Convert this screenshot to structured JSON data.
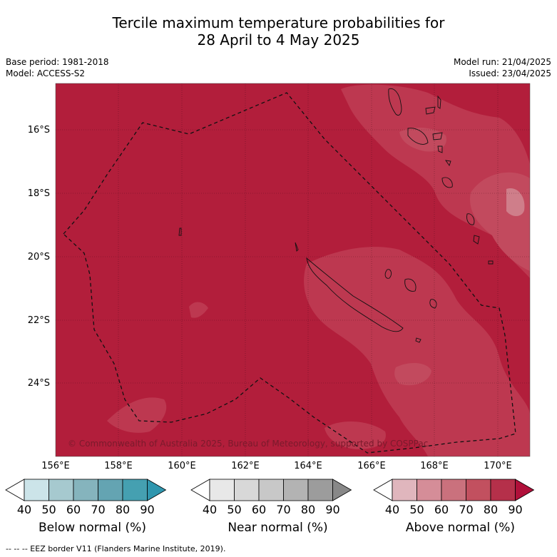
{
  "header": {
    "title_line1": "Tercile maximum temperature probabilities for",
    "title_line2": "28 April to 4 May 2025",
    "base_period": "Base period: 1981-2018",
    "model": "Model: ACCESS-S2",
    "model_run": "Model run: 21/04/2025",
    "issued": "Issued: 23/04/2025"
  },
  "map": {
    "lat_labels": [
      "16°S",
      "18°S",
      "20°S",
      "22°S",
      "24°S"
    ],
    "lon_labels": [
      "156°E",
      "158°E",
      "160°E",
      "162°E",
      "164°E",
      "166°E",
      "168°E",
      "170°E"
    ],
    "copyright": "© Commonwealth of Australia 2025, Bureau of Meteorology, supported by COSPPac",
    "background_color": "#b21e3b"
  },
  "colorbars": [
    {
      "label": "Below normal (%)",
      "ticks": [
        "40",
        "50",
        "60",
        "70",
        "80",
        "90"
      ],
      "colors": [
        "#ffffff",
        "#cce4e9",
        "#a6c9cf",
        "#85b4bd",
        "#64a4b2",
        "#45a0b1",
        "#2f96ae"
      ]
    },
    {
      "label": "Near normal (%)",
      "ticks": [
        "40",
        "50",
        "60",
        "70",
        "80",
        "90"
      ],
      "colors": [
        "#ffffff",
        "#e8e8e8",
        "#d8d8d8",
        "#c8c8c8",
        "#b3b3b3",
        "#9c9c9c",
        "#888888"
      ]
    },
    {
      "label": "Above normal (%)",
      "ticks": [
        "40",
        "50",
        "60",
        "70",
        "80",
        "90"
      ],
      "colors": [
        "#ffffff",
        "#e0b6bd",
        "#d58d98",
        "#ca717d",
        "#c2505f",
        "#b5304a",
        "#b0103a"
      ]
    }
  ],
  "legend": {
    "eez_note": "-- -- -- EEZ border V11 (Flanders Marine Institute, 2019)."
  }
}
